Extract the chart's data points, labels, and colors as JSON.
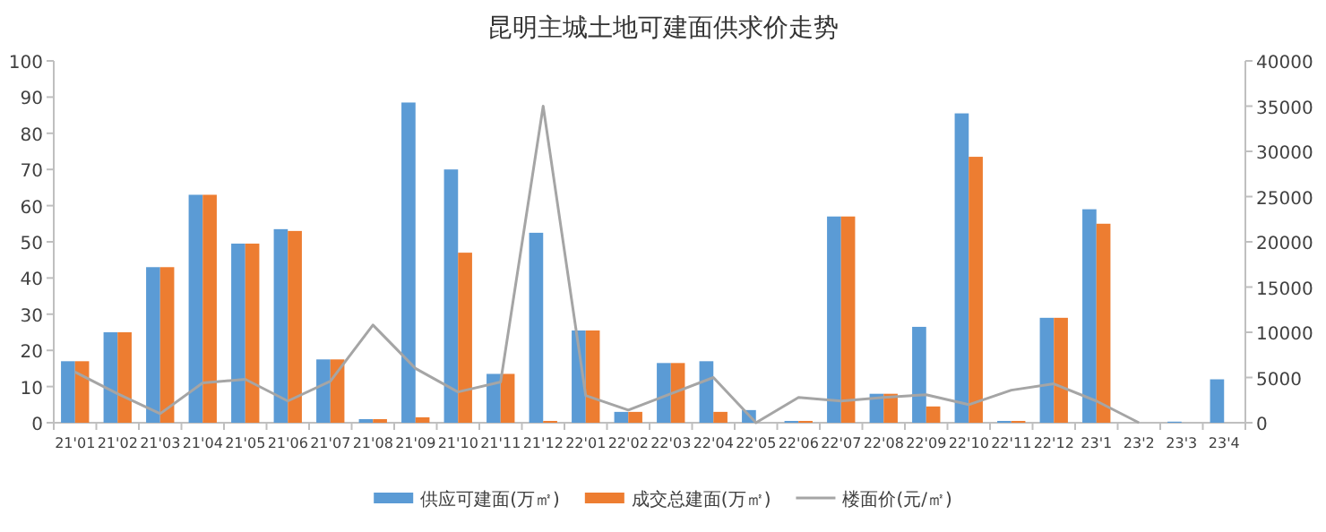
{
  "chart_data": {
    "type": "bar",
    "title": "昆明主城土地可建面供求价走势",
    "categories": [
      "21'01",
      "21'02",
      "21'03",
      "21'04",
      "21'05",
      "21'06",
      "21'07",
      "21'08",
      "21'09",
      "21'10",
      "21'11",
      "21'12",
      "22'01",
      "22'02",
      "22'03",
      "22'04",
      "22'05",
      "22'06",
      "22'07",
      "22'08",
      "22'09",
      "22'10",
      "22'11",
      "22'12",
      "23'1",
      "23'2",
      "23'3",
      "23'4"
    ],
    "series": [
      {
        "name": "供应可建面(万㎡)",
        "color": "#5b9bd5",
        "values": [
          17,
          25,
          43,
          63,
          49.5,
          53.5,
          17.5,
          1,
          88.5,
          70,
          13.5,
          52.5,
          25.5,
          3,
          16.5,
          17,
          3.5,
          0.5,
          57,
          8,
          26.5,
          85.5,
          0.5,
          29,
          59,
          0,
          0.3,
          12
        ]
      },
      {
        "name": "成交总建面(万㎡)",
        "color": "#ed7d31",
        "values": [
          17,
          25,
          43,
          63,
          49.5,
          53,
          17.5,
          1,
          1.5,
          47,
          13.5,
          0.5,
          25.5,
          3,
          16.5,
          3,
          0,
          0.5,
          57,
          8,
          4.5,
          73.5,
          0.5,
          29,
          55,
          0,
          0,
          0
        ]
      },
      {
        "name": "楼面价(元/㎡)",
        "color": "#a5a5a5",
        "type": "line",
        "axis": "y2",
        "values": [
          5600,
          3200,
          1000,
          4400,
          4800,
          2400,
          4600,
          10800,
          6000,
          3400,
          4500,
          35000,
          3000,
          1400,
          3200,
          5000,
          0,
          2800,
          2400,
          2800,
          3100,
          2000,
          3600,
          4300,
          2400,
          0,
          null,
          null
        ]
      }
    ],
    "ylim": [
      0,
      100
    ],
    "yticks": [
      0,
      10,
      20,
      30,
      40,
      50,
      60,
      70,
      80,
      90,
      100
    ],
    "y2lim": [
      0,
      40000
    ],
    "y2ticks": [
      0,
      5000,
      10000,
      15000,
      20000,
      25000,
      30000,
      35000,
      40000
    ],
    "legend": "bottom"
  }
}
